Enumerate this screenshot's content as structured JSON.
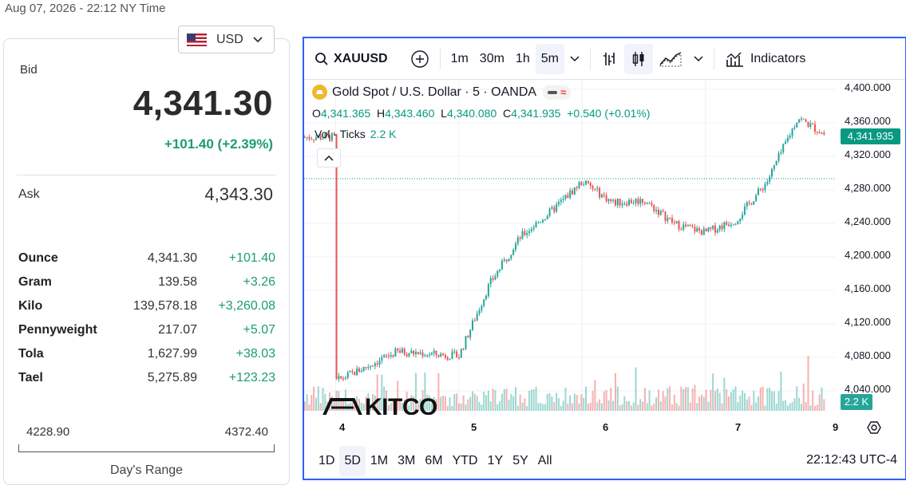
{
  "page": {
    "timestamp": "Aug 07, 2026 - 22:12 NY Time"
  },
  "currency": {
    "selected": "USD"
  },
  "quote": {
    "bid_label": "Bid",
    "bid": "4,341.30",
    "change": "+101.40 (+2.39%)",
    "ask_label": "Ask",
    "ask": "4,343.30"
  },
  "units": [
    {
      "name": "Ounce",
      "price": "4,341.30",
      "change": "+101.40"
    },
    {
      "name": "Gram",
      "price": "139.58",
      "change": "+3.26"
    },
    {
      "name": "Kilo",
      "price": "139,578.18",
      "change": "+3,260.08"
    },
    {
      "name": "Pennyweight",
      "price": "217.07",
      "change": "+5.07"
    },
    {
      "name": "Tola",
      "price": "1,627.99",
      "change": "+38.03"
    },
    {
      "name": "Tael",
      "price": "5,275.89",
      "change": "+123.23"
    }
  ],
  "day_range": {
    "low": "4228.90",
    "high": "4372.40",
    "label": "Day's Range"
  },
  "chart": {
    "symbol": "XAUUSD",
    "intervals": [
      "1m",
      "30m",
      "1h",
      "5m"
    ],
    "active_interval": "5m",
    "indicators_label": "Indicators",
    "title": "Gold Spot / U.S. Dollar · 5 · OANDA",
    "ohlc": {
      "o_label": "O",
      "o": "4,341.365",
      "h_label": "H",
      "h": "4,343.460",
      "l_label": "L",
      "l": "4,340.080",
      "c_label": "C",
      "c": "4,341.935",
      "change": "+0.540 (+0.01%)"
    },
    "volume_label": "Vol · Ticks",
    "volume_value": "2.2 K",
    "last_price": "4,341.935",
    "volume_badge": "2.2 K",
    "price_axis": [
      "4,400.000",
      "4,360.000",
      "4,320.000",
      "4,280.000",
      "4,240.000",
      "4,200.000",
      "4,160.000",
      "4,120.000",
      "4,080.000",
      "4,040.000"
    ],
    "time_axis": [
      "4",
      "5",
      "6",
      "7",
      "9"
    ],
    "ranges": [
      "1D",
      "5D",
      "1M",
      "3M",
      "6M",
      "YTD",
      "1Y",
      "5Y",
      "All"
    ],
    "active_range": "5D",
    "clock": "22:12:43 UTC-4",
    "watermark": "KITCO",
    "up_color": "#26a69a",
    "down_color": "#ef5350"
  },
  "chart_data": {
    "type": "line",
    "title": "Gold Spot / U.S. Dollar · 5 · OANDA",
    "xlabel": "",
    "ylabel": "",
    "x": [
      "4",
      "4.5",
      "5",
      "5.25",
      "5.5",
      "5.75",
      "6",
      "6.25",
      "6.5",
      "6.75",
      "7",
      "7.25",
      "7.5",
      "7.75",
      "9"
    ],
    "series": [
      {
        "name": "XAUUSD",
        "values": [
          4055,
          4090,
          4085,
          4170,
          4225,
          4255,
          4290,
          4265,
          4268,
          4240,
          4230,
          4245,
          4290,
          4365,
          4342
        ]
      }
    ],
    "ylim": [
      4030,
      4400
    ]
  }
}
